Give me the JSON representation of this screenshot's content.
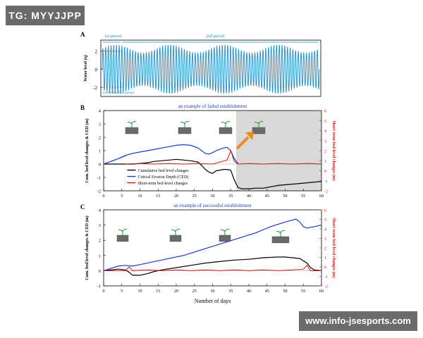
{
  "watermark_top": "TG: MYYJJPP",
  "watermark_bottom": "www.info-jsesports.com",
  "colors": {
    "blue": "#1a3bcc",
    "red": "#cc1a1a",
    "black": "#000000",
    "cyan": "#1e8fc8",
    "shade": "#d9d9d9",
    "arrow": "#f08a1e"
  },
  "chart_data": [
    {
      "panel": "A",
      "type": "line",
      "ylabel": "Water level (η)",
      "yticks": [
        2,
        0,
        -2
      ],
      "ylim": [
        -3,
        3.2
      ],
      "annotations": [
        "1st period",
        "2nd period",
        "moderator flux period"
      ],
      "series": [
        {
          "kind": "tidal oscillation",
          "periods": 80,
          "amplitude_min": 1.8,
          "amplitude_max": 2.7
        }
      ]
    },
    {
      "panel": "B",
      "type": "line",
      "title": "an example of failed establishment",
      "xlabel": "",
      "ylabel": "Cum. bed level changes & CED (m)",
      "ylabel_right": "Short-term bed-level changes (m)",
      "xlim": [
        0,
        60
      ],
      "ylim": [
        -2,
        4
      ],
      "ylim_right": [
        -3,
        6
      ],
      "xticks": [
        0,
        5,
        10,
        15,
        20,
        25,
        30,
        35,
        40,
        45,
        50,
        55,
        60
      ],
      "yticks": [
        4,
        3,
        2,
        1,
        0,
        -1,
        -2
      ],
      "yticks_right": [
        "6",
        "5",
        "4",
        "3",
        "2",
        "1",
        "0",
        "-1",
        "-2"
      ],
      "shaded_region": [
        36.5,
        60
      ],
      "legend": [
        "Cumulative bed level changes",
        "Critical Erosion Depth (CED)",
        "Short-term bed-level changes"
      ],
      "series": [
        {
          "name": "Cumulative bed level changes",
          "color": "black",
          "x": [
            0,
            2,
            4,
            6,
            8,
            10,
            12,
            14,
            16,
            18,
            20,
            22,
            24,
            26,
            27,
            28,
            29,
            30,
            31,
            32,
            33,
            34,
            35,
            36,
            37,
            38,
            40,
            42,
            44,
            46,
            48,
            50,
            52,
            54,
            56,
            58,
            60
          ],
          "y": [
            0,
            0,
            0,
            0,
            0,
            0.05,
            0.1,
            0.2,
            0.25,
            0.3,
            0.35,
            0.3,
            0.25,
            0.15,
            -0.1,
            -0.4,
            -0.6,
            -0.7,
            -0.5,
            -0.45,
            -0.4,
            -0.4,
            -0.45,
            -1.2,
            -1.75,
            -1.85,
            -1.85,
            -1.8,
            -1.8,
            -1.7,
            -1.6,
            -1.55,
            -1.5,
            -1.45,
            -1.4,
            -1.35,
            -1.3
          ]
        },
        {
          "name": "Critical Erosion Depth (CED)",
          "color": "blue",
          "x": [
            0,
            2,
            4,
            6,
            8,
            10,
            12,
            14,
            16,
            18,
            20,
            22,
            24,
            26,
            28,
            29,
            30,
            31,
            32,
            33,
            34,
            35,
            36,
            37
          ],
          "y": [
            0,
            0.2,
            0.4,
            0.65,
            0.8,
            0.9,
            1.0,
            1.1,
            1.2,
            1.3,
            1.4,
            1.45,
            1.4,
            1.2,
            0.8,
            0.75,
            0.85,
            1.0,
            1.1,
            1.2,
            1.25,
            1.0,
            0.4,
            0.05
          ]
        },
        {
          "name": "Short-term bed-level changes",
          "color": "red",
          "x": [
            6,
            10,
            14,
            18,
            22,
            26,
            30,
            34,
            35,
            36,
            37,
            40,
            44,
            48,
            52,
            56,
            60
          ],
          "y": [
            0,
            0.05,
            0,
            0.05,
            0,
            0.05,
            0,
            0.3,
            1.0,
            0.2,
            0,
            0.05,
            0,
            0.05,
            0,
            0.05,
            0
          ]
        }
      ]
    },
    {
      "panel": "C",
      "type": "line",
      "title": "an example of successful establishment",
      "xlabel": "Number of days",
      "ylabel": "Cum. bed level changes & CED (m)",
      "ylabel_right": "Short-term bed-level changes (m)",
      "xlim": [
        0,
        60
      ],
      "ylim": [
        -1,
        4
      ],
      "ylim_right": [
        -3,
        6
      ],
      "xticks": [
        0,
        5,
        10,
        15,
        20,
        25,
        30,
        35,
        40,
        45,
        50,
        55,
        60
      ],
      "yticks": [
        4,
        3,
        2,
        1,
        0,
        -1
      ],
      "yticks_right": [
        "6",
        "5",
        "4",
        "3",
        "2",
        "1",
        "0",
        "-1",
        "-2"
      ],
      "series": [
        {
          "name": "Cumulative bed level changes",
          "color": "black",
          "x": [
            0,
            4,
            6,
            7,
            8,
            10,
            12,
            14,
            16,
            20,
            24,
            28,
            32,
            36,
            40,
            44,
            48,
            50,
            52,
            54,
            56,
            57,
            58,
            60
          ],
          "y": [
            0,
            0.1,
            0.05,
            -0.1,
            -0.3,
            -0.3,
            -0.2,
            -0.05,
            0.05,
            0.2,
            0.35,
            0.5,
            0.6,
            0.7,
            0.75,
            0.85,
            0.9,
            0.9,
            0.85,
            0.8,
            0.5,
            0.2,
            0.05,
            0
          ]
        },
        {
          "name": "Critical Erosion Depth (CED)",
          "color": "blue",
          "x": [
            0,
            4,
            6,
            8,
            10,
            14,
            18,
            22,
            26,
            30,
            34,
            38,
            42,
            46,
            50,
            53,
            54,
            55,
            56,
            57,
            58,
            60
          ],
          "y": [
            0,
            0.3,
            0.35,
            0.3,
            0.4,
            0.6,
            0.8,
            1.0,
            1.3,
            1.6,
            1.9,
            2.2,
            2.5,
            2.9,
            3.2,
            3.4,
            3.2,
            2.9,
            2.8,
            2.85,
            2.9,
            3.0
          ]
        },
        {
          "name": "Short-term bed-level changes",
          "color": "red",
          "x": [
            0,
            6,
            7,
            8,
            12,
            16,
            20,
            24,
            28,
            32,
            36,
            40,
            44,
            48,
            52,
            55,
            56,
            57,
            60
          ],
          "y": [
            0,
            0,
            0.25,
            0,
            0.05,
            0,
            0.05,
            0,
            0.05,
            0,
            0.05,
            0,
            0.05,
            0,
            0.05,
            0.1,
            0.35,
            0,
            0
          ]
        }
      ]
    }
  ]
}
